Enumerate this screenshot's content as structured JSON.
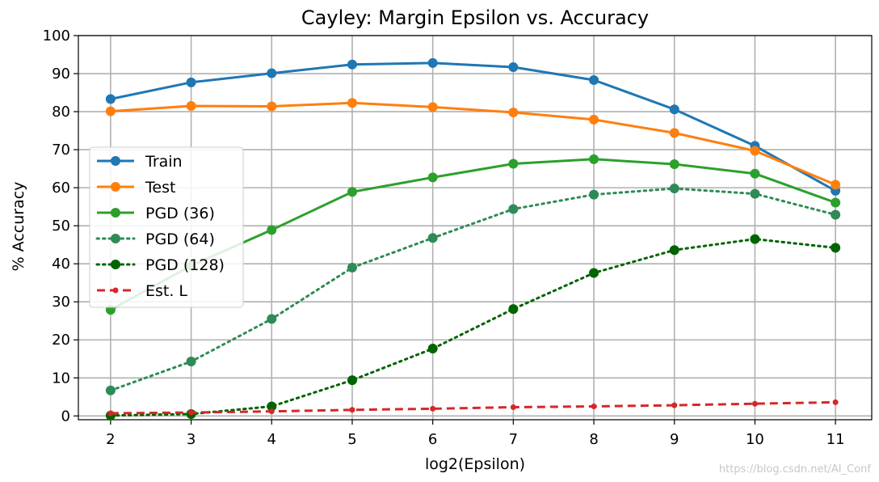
{
  "chart_data": {
    "type": "line",
    "title": "Cayley: Margin Epsilon vs. Accuracy",
    "xlabel": "log2(Epsilon)",
    "ylabel": "% Accuracy",
    "x": [
      2,
      3,
      4,
      5,
      6,
      7,
      8,
      9,
      10,
      11
    ],
    "xlim": [
      1.6,
      11.45
    ],
    "ylim": [
      -1,
      100
    ],
    "xticks": [
      2,
      3,
      4,
      5,
      6,
      7,
      8,
      9,
      10,
      11
    ],
    "yticks": [
      0,
      10,
      20,
      30,
      40,
      50,
      60,
      70,
      80,
      90,
      100
    ],
    "grid": true,
    "legend_position": "center-left",
    "series": [
      {
        "name": "Train",
        "color": "#1f77b4",
        "linestyle": "solid",
        "marker": "circle",
        "values": [
          83.3,
          87.7,
          90.1,
          92.4,
          92.8,
          91.7,
          88.3,
          80.6,
          71.0,
          59.2
        ]
      },
      {
        "name": "Test",
        "color": "#ff7f0e",
        "linestyle": "solid",
        "marker": "circle",
        "values": [
          80.1,
          81.5,
          81.4,
          82.3,
          81.2,
          79.8,
          77.9,
          74.4,
          69.7,
          60.8
        ]
      },
      {
        "name": "PGD (36)",
        "color": "#2ca02c",
        "linestyle": "solid",
        "marker": "circle",
        "values": [
          27.9,
          39.5,
          48.9,
          58.9,
          62.7,
          66.3,
          67.5,
          66.2,
          63.7,
          56.1
        ]
      },
      {
        "name": "PGD (64)",
        "color": "#2e8b57",
        "linestyle": "dotted",
        "marker": "circle",
        "values": [
          6.7,
          14.3,
          25.5,
          39.0,
          46.8,
          54.4,
          58.2,
          59.8,
          58.4,
          52.9
        ]
      },
      {
        "name": "PGD (128)",
        "color": "#006400",
        "linestyle": "dotted",
        "marker": "circle",
        "values": [
          0.1,
          0.5,
          2.5,
          9.4,
          17.7,
          28.1,
          37.6,
          43.6,
          46.5,
          44.2
        ]
      },
      {
        "name": "Est. L",
        "color": "#d62728",
        "linestyle": "dashed",
        "marker": "small-circle",
        "values": [
          0.7,
          0.9,
          1.2,
          1.6,
          1.9,
          2.3,
          2.5,
          2.8,
          3.2,
          3.6
        ]
      }
    ]
  },
  "watermark": "https://blog.csdn.net/AI_Conf"
}
